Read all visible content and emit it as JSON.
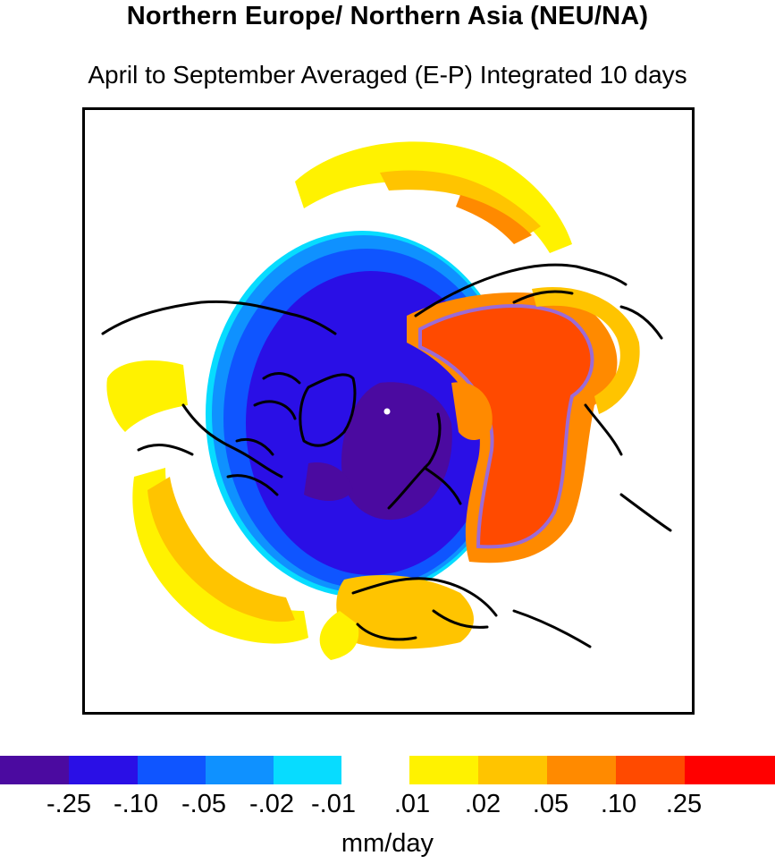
{
  "title": "Northern Europe/ Northern Asia (NEU/NA)",
  "subtitle": "April to September Averaged (E-P) Integrated 10 days",
  "colorbar": {
    "units": "mm/day",
    "negative_colors": [
      "#4b0aa0",
      "#2a0fe6",
      "#0f55ff",
      "#0f91ff",
      "#07dcff"
    ],
    "positive_colors": [
      "#fff200",
      "#ffc400",
      "#ff8a00",
      "#ff4a00",
      "#ff0000"
    ],
    "negative_ticks": [
      "-.25",
      "-.10",
      "-.05",
      "-.02",
      "-.01"
    ],
    "positive_ticks": [
      ".01",
      ".02",
      ".05",
      ".10",
      ".25"
    ]
  },
  "map": {
    "projection": "north-polar-stereographic",
    "highlight_outline_color": "#9b6bd6",
    "coastline_color": "#000000"
  }
}
